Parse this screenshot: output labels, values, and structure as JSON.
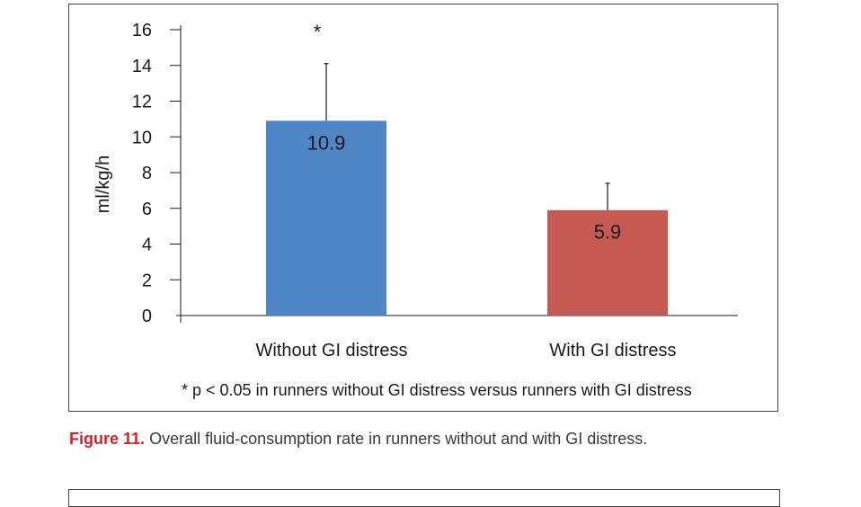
{
  "caption": {
    "label": "Figure 11.",
    "text": "Overall fluid-consumption rate in runners without and with GI distress."
  },
  "chart_data": {
    "type": "bar",
    "categories": [
      "Without GI distress",
      "With GI distress"
    ],
    "values": [
      10.9,
      5.9
    ],
    "data_labels": [
      "10.9",
      "5.9"
    ],
    "error_upper": [
      14.1,
      7.4
    ],
    "significance_marker": "*",
    "ylabel": "ml/kg/h",
    "ylim": [
      0,
      16
    ],
    "yticks": [
      "0",
      "2",
      "4",
      "6",
      "8",
      "10",
      "12",
      "14",
      "16"
    ],
    "colors": [
      "#4f86c6",
      "#c65a52"
    ],
    "footnote": "* p < 0.05 in runners without GI distress versus runners with GI distress",
    "grid": false,
    "legend": "none"
  }
}
